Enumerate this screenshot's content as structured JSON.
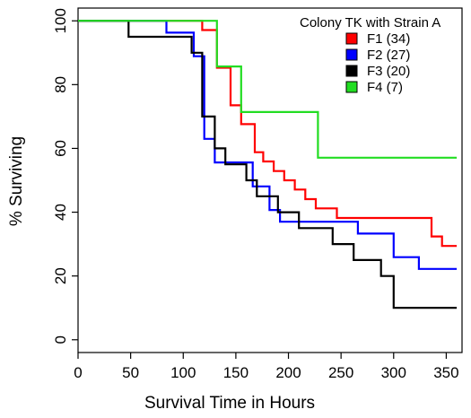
{
  "chart_data": {
    "type": "line",
    "title": "",
    "xlabel": "Survival Time in Hours",
    "ylabel": "% Surviving",
    "xlim": [
      0,
      365
    ],
    "ylim": [
      -4,
      104
    ],
    "xticks": [
      0,
      50,
      100,
      150,
      200,
      250,
      300,
      350
    ],
    "yticks": [
      0,
      20,
      40,
      60,
      80,
      100
    ],
    "grid": false,
    "legend_title": "Colony TK with Strain A",
    "legend_position": "top-right",
    "step": true,
    "series": [
      {
        "name": "F1 (34)",
        "color": "#ff0000",
        "points": [
          [
            0,
            100
          ],
          [
            118,
            100
          ],
          [
            118,
            97.1
          ],
          [
            132,
            97.1
          ],
          [
            132,
            85.3
          ],
          [
            145,
            85.3
          ],
          [
            145,
            73.5
          ],
          [
            155,
            73.5
          ],
          [
            155,
            67.6
          ],
          [
            168,
            67.6
          ],
          [
            168,
            58.8
          ],
          [
            176,
            58.8
          ],
          [
            176,
            55.9
          ],
          [
            186,
            55.9
          ],
          [
            186,
            52.9
          ],
          [
            196,
            52.9
          ],
          [
            196,
            50.0
          ],
          [
            206,
            50.0
          ],
          [
            206,
            47.1
          ],
          [
            216,
            47.1
          ],
          [
            216,
            44.1
          ],
          [
            226,
            44.1
          ],
          [
            226,
            41.2
          ],
          [
            246,
            41.2
          ],
          [
            246,
            38.2
          ],
          [
            336,
            38.2
          ],
          [
            336,
            32.4
          ],
          [
            346,
            32.4
          ],
          [
            346,
            29.4
          ],
          [
            360,
            29.4
          ]
        ]
      },
      {
        "name": "F2 (27)",
        "color": "#0000ff",
        "points": [
          [
            0,
            100
          ],
          [
            84,
            100
          ],
          [
            84,
            96.3
          ],
          [
            110,
            96.3
          ],
          [
            110,
            88.9
          ],
          [
            120,
            88.9
          ],
          [
            120,
            63.0
          ],
          [
            130,
            63.0
          ],
          [
            130,
            55.6
          ],
          [
            166,
            55.6
          ],
          [
            166,
            48.1
          ],
          [
            182,
            48.1
          ],
          [
            182,
            40.7
          ],
          [
            192,
            40.7
          ],
          [
            192,
            37.0
          ],
          [
            266,
            37.0
          ],
          [
            266,
            33.3
          ],
          [
            300,
            33.3
          ],
          [
            300,
            25.9
          ],
          [
            324,
            25.9
          ],
          [
            324,
            22.2
          ],
          [
            360,
            22.2
          ]
        ]
      },
      {
        "name": "F3 (20)",
        "color": "#000000",
        "points": [
          [
            0,
            100
          ],
          [
            48,
            100
          ],
          [
            48,
            95
          ],
          [
            108,
            95
          ],
          [
            108,
            90
          ],
          [
            118,
            90
          ],
          [
            118,
            70
          ],
          [
            130,
            70
          ],
          [
            130,
            60
          ],
          [
            140,
            60
          ],
          [
            140,
            55
          ],
          [
            160,
            55
          ],
          [
            160,
            50
          ],
          [
            170,
            50
          ],
          [
            170,
            45
          ],
          [
            190,
            45
          ],
          [
            190,
            40
          ],
          [
            210,
            40
          ],
          [
            210,
            35
          ],
          [
            242,
            35
          ],
          [
            242,
            30
          ],
          [
            262,
            30
          ],
          [
            262,
            25
          ],
          [
            288,
            25
          ],
          [
            288,
            20
          ],
          [
            300,
            20
          ],
          [
            300,
            10
          ],
          [
            360,
            10
          ]
        ]
      },
      {
        "name": "F4 (7)",
        "color": "#22dd22",
        "points": [
          [
            0,
            100
          ],
          [
            132,
            100
          ],
          [
            132,
            85.7
          ],
          [
            155,
            85.7
          ],
          [
            155,
            71.4
          ],
          [
            228,
            71.4
          ],
          [
            228,
            57.1
          ],
          [
            360,
            57.1
          ]
        ]
      }
    ]
  }
}
